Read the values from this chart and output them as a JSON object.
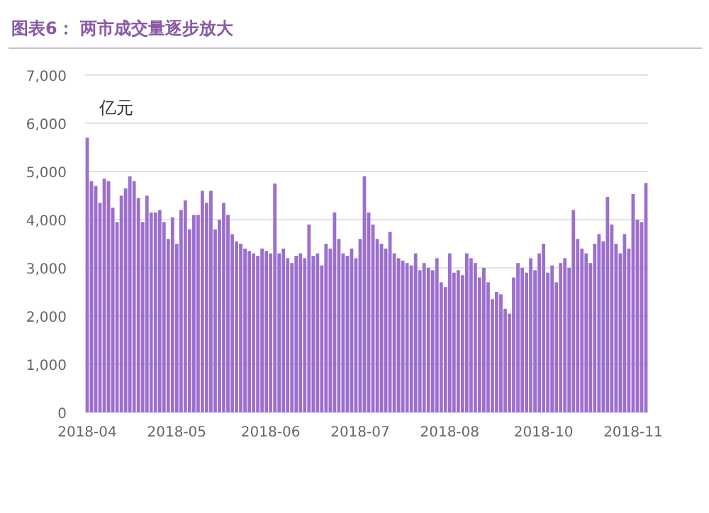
{
  "chart_data": {
    "type": "bar",
    "title": "图表6：  两市成交量逐步放大",
    "ylabel": "亿元",
    "categories": [
      "2018-04",
      null,
      null,
      null,
      null,
      null,
      null,
      null,
      null,
      null,
      null,
      null,
      null,
      null,
      null,
      null,
      null,
      null,
      null,
      null,
      null,
      "2018-05",
      null,
      null,
      null,
      null,
      null,
      null,
      null,
      null,
      null,
      null,
      null,
      null,
      null,
      null,
      null,
      null,
      null,
      null,
      null,
      null,
      null,
      "2018-06",
      null,
      null,
      null,
      null,
      null,
      null,
      null,
      null,
      null,
      null,
      null,
      null,
      null,
      null,
      null,
      null,
      null,
      null,
      null,
      null,
      "2018-07",
      null,
      null,
      null,
      null,
      null,
      null,
      null,
      null,
      null,
      null,
      null,
      null,
      null,
      null,
      null,
      null,
      null,
      null,
      null,
      null,
      "2018-08",
      null,
      null,
      null,
      null,
      null,
      null,
      null,
      null,
      null,
      null,
      null,
      null,
      null,
      null,
      null,
      null,
      null,
      null,
      null,
      null,
      null,
      "2018-10",
      null,
      null,
      null,
      null,
      null,
      null,
      null,
      null,
      null,
      null,
      null,
      null,
      null,
      null,
      null,
      null,
      null,
      null,
      null,
      null,
      "2018-11",
      null,
      null,
      null
    ],
    "values": [
      5700,
      4800,
      4700,
      4350,
      4850,
      4800,
      4250,
      3950,
      4500,
      4650,
      4900,
      4800,
      4450,
      3950,
      4500,
      4150,
      4150,
      4200,
      3950,
      3600,
      4050,
      3500,
      4200,
      4400,
      3800,
      4100,
      4100,
      4600,
      4350,
      4600,
      3800,
      4000,
      4350,
      4100,
      3700,
      3550,
      3500,
      3400,
      3350,
      3300,
      3250,
      3400,
      3350,
      3300,
      4750,
      3300,
      3400,
      3200,
      3100,
      3250,
      3300,
      3200,
      3900,
      3250,
      3300,
      3050,
      3500,
      3400,
      4150,
      3600,
      3300,
      3250,
      3400,
      3200,
      3600,
      4900,
      4150,
      3900,
      3600,
      3500,
      3400,
      3750,
      3300,
      3200,
      3150,
      3100,
      3050,
      3300,
      2950,
      3100,
      3000,
      2950,
      3200,
      2700,
      2600,
      3300,
      2900,
      2950,
      2850,
      3300,
      3200,
      3100,
      2800,
      3000,
      2700,
      2350,
      2500,
      2450,
      2150,
      2050,
      2800,
      3100,
      3000,
      2900,
      3200,
      2950,
      3300,
      3500,
      2900,
      3050,
      2700,
      3100,
      3200,
      3000,
      4200,
      3600,
      3400,
      3300,
      3100,
      3500,
      3700,
      3550,
      4470,
      3900,
      3500,
      3300,
      3700,
      3400,
      4530,
      4000,
      3950,
      4760
    ],
    "color": "#9c6fcf",
    "ylim": [
      0,
      7000
    ],
    "yticks": [
      {
        "value": 0,
        "label": "0"
      },
      {
        "value": 1000,
        "label": "1,000"
      },
      {
        "value": 2000,
        "label": "2,000"
      },
      {
        "value": 3000,
        "label": "3,000"
      },
      {
        "value": 4000,
        "label": "4,000"
      },
      {
        "value": 5000,
        "label": "5,000"
      },
      {
        "value": 6000,
        "label": "6,000"
      },
      {
        "value": 7000,
        "label": "7,000"
      }
    ],
    "grid": "y"
  }
}
